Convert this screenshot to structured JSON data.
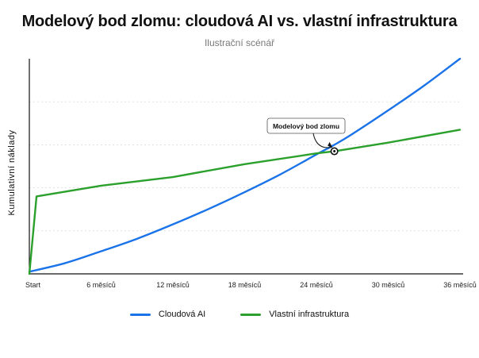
{
  "title": "Modelový bod zlomu: cloudová AI vs. vlastní infrastruktura",
  "subtitle": "Ilustrační scénář",
  "colors": {
    "cloud": "#1a73e8",
    "own": "#2ca02c",
    "axis": "#111111",
    "grid": "#d0d0d0"
  },
  "chart_data": {
    "type": "line",
    "title": "Modelový bod zlomu: cloudová AI vs. vlastní infrastruktura",
    "subtitle": "Ilustrační scénář",
    "xlabel": "",
    "ylabel": "Kumulativní náklady",
    "xlim": [
      0,
      36
    ],
    "ylim": [
      0,
      100
    ],
    "x_ticks": [
      {
        "value": 0,
        "label": "Start"
      },
      {
        "value": 6,
        "label": "6 měsíců"
      },
      {
        "value": 12,
        "label": "12 měsíců"
      },
      {
        "value": 18,
        "label": "18 měsíců"
      },
      {
        "value": 24,
        "label": "24 měsíců"
      },
      {
        "value": 30,
        "label": "30 měsíců"
      },
      {
        "value": 36,
        "label": "36 měsíců"
      }
    ],
    "grid": "horizontal dashed",
    "legend_position": "bottom",
    "series": [
      {
        "name": "Cloudová AI",
        "color": "#1a73e8",
        "x": [
          0,
          3,
          6,
          9,
          12,
          15,
          18,
          21,
          24,
          25.5,
          27,
          30,
          33,
          36
        ],
        "y": [
          1,
          5,
          10.5,
          16.3,
          23,
          30.2,
          38,
          46.3,
          55.5,
          60,
          65,
          76,
          87.5,
          100
        ]
      },
      {
        "name": "Vlastní infrastruktura",
        "color": "#2ca02c",
        "x": [
          0,
          0.6,
          6,
          12,
          18,
          24,
          25.5,
          30,
          36
        ],
        "y": [
          0,
          36,
          41,
          45,
          51,
          56,
          57,
          61,
          67
        ]
      }
    ],
    "annotations": [
      {
        "text": "Modelový bod zlomu",
        "x": 25.5,
        "y": 57
      }
    ]
  }
}
